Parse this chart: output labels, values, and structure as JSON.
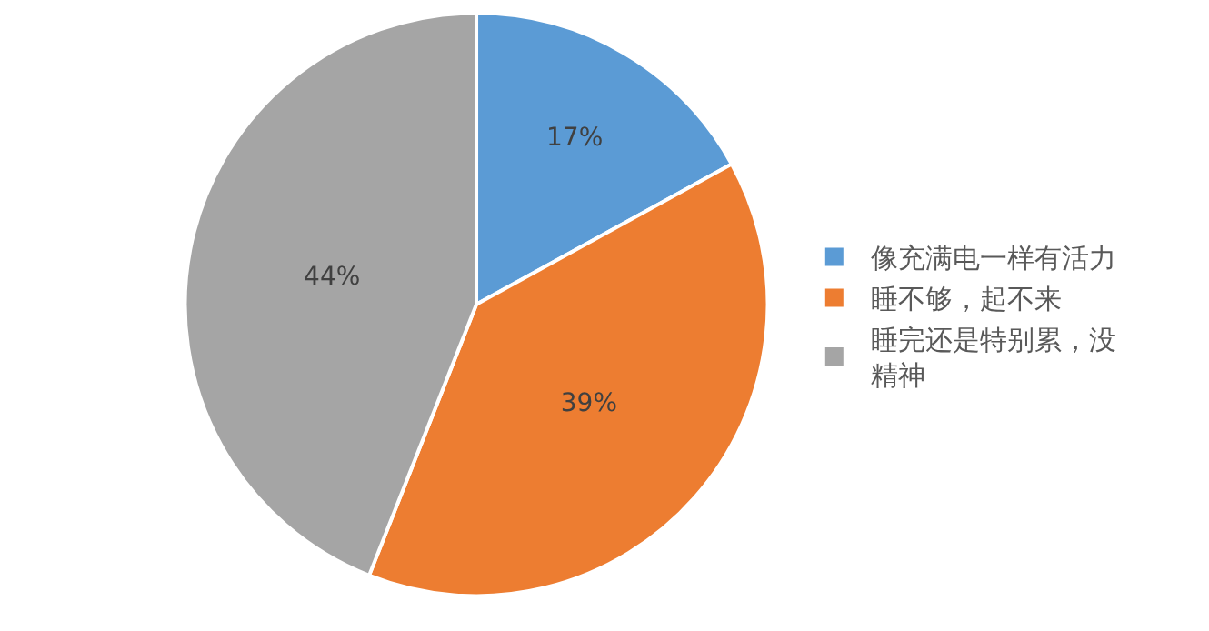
{
  "chart_data": {
    "type": "pie",
    "categories": [
      "像充满电一样有活力",
      "睡不够，起不来",
      "睡完还是特别累，没精神"
    ],
    "values": [
      17,
      39,
      44
    ],
    "colors": [
      "#5b9bd5",
      "#ed7d31",
      "#a5a5a5"
    ],
    "value_labels": [
      "17%",
      "39%",
      "44%"
    ],
    "legend": "right"
  }
}
